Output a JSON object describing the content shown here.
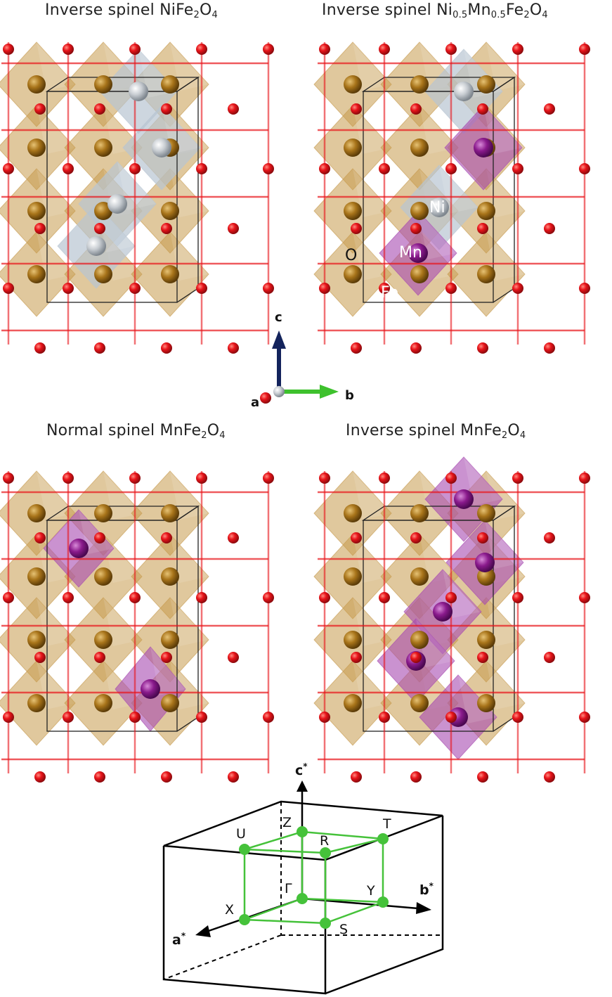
{
  "titles": {
    "p1": {
      "a": "Inverse spinel NiFe",
      "s1": "2",
      "b": "O",
      "s2": "4"
    },
    "p2": {
      "a": "Inverse spinel Ni",
      "s1": "0.5",
      "b": "Mn",
      "s2": "0.5",
      "c": "Fe",
      "s3": "2",
      "d": "O",
      "s4": "4"
    },
    "p3": {
      "a": "Normal spinel MnFe",
      "s1": "2",
      "b": "O",
      "s2": "4"
    },
    "p4": {
      "a": "Inverse spinel MnFe",
      "s1": "2",
      "b": "O",
      "s2": "4"
    }
  },
  "atom_labels": {
    "ni": "Ni",
    "mn": "Mn",
    "o": "O",
    "fe": "Fe"
  },
  "axes": {
    "c": "c",
    "b": "b",
    "a": "a"
  },
  "bz": {
    "a_star": "a",
    "b_star": "b",
    "c_star": "c",
    "star": "*",
    "points": {
      "U": "U",
      "Z": "Z",
      "T": "T",
      "R": "R",
      "Gamma": "Γ",
      "Y": "Y",
      "X": "X",
      "S": "S"
    }
  },
  "colors": {
    "oxygen": "#e8141a",
    "iron": "#a8741a",
    "nickel": "#c8cdd2",
    "manganese": "#8a1a8c",
    "fe_poly": "#c79a4c",
    "ni_poly": "#b8c4d2",
    "mn_poly": "#a64ab0",
    "bz_path": "#45c23a",
    "axis_c": "#13235c",
    "axis_b": "#3ec12d"
  }
}
